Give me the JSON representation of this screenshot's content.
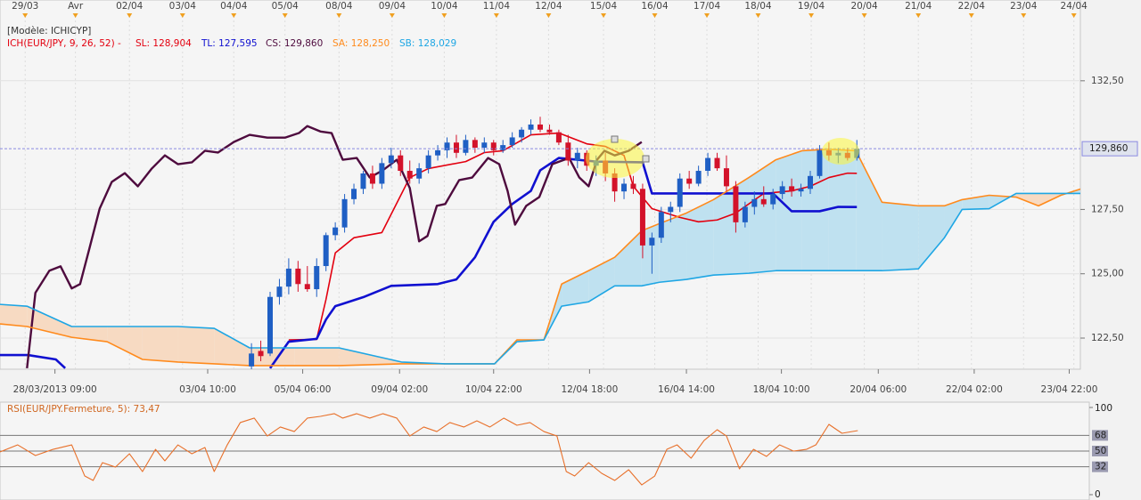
{
  "header": {
    "model": "[Modèle: ICHICYP]"
  },
  "chart_data": [
    {
      "type": "candlestick",
      "indicator_label": "ICH(EUR/JPY, 9, 26, 52) -",
      "xlim": [
        0,
        116
      ],
      "ylim": [
        121.29,
        135.64
      ],
      "grid": true,
      "yticks": [
        {
          "value": 122.5,
          "label": "122,50"
        },
        {
          "value": 125,
          "label": "125,00"
        },
        {
          "value": 127.5,
          "label": "127,50"
        },
        {
          "value": 132.5,
          "label": "132,50"
        }
      ],
      "last_price": {
        "value": 129.86,
        "label": "129,860"
      },
      "xticks_top": [
        {
          "value": 2.7,
          "label": "29/03"
        },
        {
          "value": 8.1,
          "label": "Avr"
        },
        {
          "value": 13.9,
          "label": "02/04"
        },
        {
          "value": 19.6,
          "label": "03/04"
        },
        {
          "value": 25.1,
          "label": "04/04"
        },
        {
          "value": 30.6,
          "label": "05/04"
        },
        {
          "value": 36.4,
          "label": "08/04"
        },
        {
          "value": 42.1,
          "label": "09/04"
        },
        {
          "value": 47.7,
          "label": "10/04"
        },
        {
          "value": 53.3,
          "label": "11/04"
        },
        {
          "value": 58.9,
          "label": "12/04"
        },
        {
          "value": 64.8,
          "label": "15/04"
        },
        {
          "value": 70.3,
          "label": "16/04"
        },
        {
          "value": 75.9,
          "label": "17/04"
        },
        {
          "value": 81.4,
          "label": "18/04"
        },
        {
          "value": 87.1,
          "label": "19/04"
        },
        {
          "value": 92.8,
          "label": "20/04"
        },
        {
          "value": 98.6,
          "label": "21/04"
        },
        {
          "value": 104.3,
          "label": "22/04"
        },
        {
          "value": 109.9,
          "label": "23/04"
        },
        {
          "value": 115.3,
          "label": "24/04"
        }
      ],
      "xticks": [
        {
          "value": 5.9,
          "label": "28/03/2013 09:00"
        },
        {
          "value": 22.3,
          "label": "03/04 10:00"
        },
        {
          "value": 32.5,
          "label": "05/04 06:00"
        },
        {
          "value": 42.9,
          "label": "09/04 02:00"
        },
        {
          "value": 53.0,
          "label": "10/04 22:00"
        },
        {
          "value": 63.3,
          "label": "12/04 18:00"
        },
        {
          "value": 73.7,
          "label": "16/04 14:00"
        },
        {
          "value": 83.9,
          "label": "18/04 10:00"
        },
        {
          "value": 94.3,
          "label": "20/04 06:00"
        },
        {
          "value": 104.6,
          "label": "22/04 02:00"
        },
        {
          "value": 114.8,
          "label": "23/04 22:00"
        }
      ],
      "candles": {
        "up_color": "#1f5fc4",
        "down_color": "#d3122a",
        "x": [
          27,
          28,
          29,
          30,
          31,
          32,
          33,
          34,
          35,
          36,
          37,
          38,
          39,
          40,
          41,
          42,
          43,
          44,
          45,
          46,
          47,
          48,
          49,
          50,
          51,
          52,
          53,
          54,
          55,
          56,
          57,
          58,
          59,
          60,
          61,
          62,
          63,
          64,
          65,
          66,
          67,
          68,
          69,
          70,
          71,
          72,
          73,
          74,
          75,
          76,
          77,
          78,
          79,
          80,
          81,
          82,
          83,
          84,
          85,
          86,
          87,
          88,
          89,
          90,
          91,
          92
        ],
        "open": [
          121.4,
          122.0,
          121.9,
          124.1,
          124.5,
          125.2,
          124.6,
          124.4,
          125.3,
          126.5,
          126.8,
          127.9,
          128.3,
          128.9,
          128.5,
          129.3,
          129.6,
          129.0,
          128.7,
          129.1,
          129.6,
          129.8,
          130.1,
          129.7,
          130.2,
          129.9,
          130.1,
          129.8,
          130.0,
          130.3,
          130.6,
          130.8,
          130.6,
          130.5,
          130.1,
          129.4,
          129.7,
          129.2,
          129.4,
          128.9,
          128.2,
          128.5,
          128.3,
          126.1,
          126.4,
          127.4,
          127.6,
          128.7,
          128.5,
          129.0,
          129.5,
          129.1,
          128.4,
          127.0,
          127.6,
          127.9,
          127.7,
          128.1,
          128.4,
          128.2,
          128.3,
          128.8,
          129.8,
          129.6,
          129.7,
          129.5
        ],
        "high": [
          122.3,
          122.4,
          124.3,
          124.8,
          125.6,
          125.5,
          125.3,
          125.6,
          126.6,
          127.0,
          128.1,
          128.5,
          129.0,
          129.2,
          129.5,
          129.9,
          129.8,
          129.4,
          129.3,
          129.8,
          130.0,
          130.3,
          130.4,
          130.4,
          130.3,
          130.3,
          130.2,
          130.2,
          130.5,
          130.7,
          131.0,
          131.1,
          130.8,
          130.6,
          130.4,
          129.9,
          129.8,
          129.6,
          129.7,
          129.1,
          128.7,
          128.8,
          128.5,
          126.6,
          127.6,
          127.8,
          128.9,
          129.0,
          129.2,
          129.7,
          129.7,
          129.6,
          128.6,
          127.8,
          128.2,
          128.4,
          128.3,
          128.6,
          128.7,
          128.5,
          129.0,
          130.0,
          130.1,
          129.9,
          129.9,
          130.2
        ],
        "low": [
          121.2,
          121.6,
          121.8,
          123.8,
          124.2,
          124.3,
          124.3,
          124.1,
          125.1,
          126.3,
          126.6,
          127.7,
          128.1,
          128.3,
          128.3,
          129.1,
          128.8,
          128.5,
          128.5,
          128.9,
          129.4,
          129.5,
          129.5,
          129.6,
          129.7,
          129.7,
          129.6,
          129.7,
          129.9,
          130.1,
          130.4,
          130.5,
          130.4,
          130.0,
          129.2,
          129.1,
          129.0,
          128.8,
          128.6,
          127.8,
          127.9,
          128.1,
          125.6,
          125.0,
          126.2,
          127.0,
          127.4,
          128.3,
          128.4,
          128.8,
          129.0,
          128.2,
          126.6,
          126.8,
          127.3,
          127.6,
          127.5,
          127.9,
          128.0,
          128.0,
          128.1,
          128.7,
          129.4,
          129.3,
          129.4,
          129.4
        ],
        "close": [
          121.9,
          121.8,
          124.1,
          124.5,
          125.2,
          124.6,
          124.4,
          125.3,
          126.5,
          126.8,
          127.9,
          128.3,
          128.9,
          128.5,
          129.3,
          129.6,
          129.0,
          128.7,
          129.1,
          129.6,
          129.8,
          130.1,
          129.7,
          130.2,
          129.9,
          130.1,
          129.8,
          130.0,
          130.3,
          130.6,
          130.8,
          130.6,
          130.5,
          130.1,
          129.4,
          129.7,
          129.2,
          129.4,
          128.9,
          128.2,
          128.5,
          128.3,
          126.1,
          126.4,
          127.4,
          127.6,
          128.7,
          128.5,
          129.0,
          129.5,
          129.1,
          128.4,
          127.0,
          127.6,
          127.9,
          127.7,
          128.1,
          128.4,
          128.2,
          128.3,
          128.8,
          129.8,
          129.6,
          129.7,
          129.5,
          129.86
        ]
      },
      "cloud_colors": {
        "up": "#bfe1f0",
        "down": "#f7dac2"
      },
      "series": [
        {
          "name": "SL",
          "legend": "SL: 128,904",
          "color": "#e3000f",
          "width": 1.6,
          "x": [
            31,
            34,
            35,
            36,
            38,
            41,
            44,
            46,
            50,
            52,
            54,
            57,
            60,
            63,
            65,
            67,
            68,
            70,
            73,
            75,
            77,
            79,
            82,
            85,
            87,
            89,
            91,
            92
          ],
          "values": [
            122.43,
            122.45,
            124.0,
            125.81,
            126.4,
            126.6,
            128.74,
            129.09,
            129.36,
            129.71,
            129.78,
            130.4,
            130.47,
            130.05,
            129.95,
            129.6,
            128.4,
            127.53,
            127.19,
            127.02,
            127.09,
            127.36,
            128.12,
            128.22,
            128.4,
            128.74,
            128.91,
            128.904
          ]
        },
        {
          "name": "TL",
          "legend": "TL: 127,595",
          "color": "#1010d0",
          "width": 2.6,
          "x": [
            0,
            3,
            6,
            7,
            18,
            29,
            31,
            34,
            35,
            36,
            39,
            42,
            47,
            49,
            51,
            53,
            55,
            57,
            58,
            60,
            64,
            69,
            70,
            78,
            83,
            85,
            88,
            90,
            92
          ],
          "values": [
            121.84,
            121.84,
            121.67,
            121.33,
            null,
            121.33,
            122.36,
            122.47,
            123.22,
            123.74,
            124.09,
            124.53,
            124.6,
            124.78,
            125.64,
            127.02,
            127.71,
            128.22,
            129.02,
            129.5,
            129.36,
            129.33,
            128.12,
            128.12,
            128.12,
            127.43,
            127.43,
            127.6,
            127.595
          ]
        },
        {
          "name": "CS",
          "legend": "CS: 129,860",
          "color": "#4e0b3e",
          "width": 2.4,
          "x": [
            2.9,
            3.8,
            5.3,
            6.5,
            7.7,
            8.6,
            9.6,
            10.7,
            12,
            13.4,
            14.8,
            16.3,
            17.7,
            19.1,
            20.6,
            22,
            23.4,
            25.1,
            26.8,
            28.7,
            30.6,
            32.1,
            33,
            34.4,
            35.6,
            36.8,
            38.3,
            39.7,
            41.1,
            42.6,
            44,
            45,
            45.9,
            46.9,
            47.8,
            49.3,
            50.7,
            52.4,
            53.6,
            54.5,
            55.3,
            56.5,
            57.9,
            59.3,
            61.1,
            62.2,
            63.2,
            64.1,
            64.9,
            66,
            67.5,
            68.9
          ],
          "values": [
            121.33,
            124.26,
            125.12,
            125.29,
            124.43,
            124.6,
            125.98,
            127.53,
            128.57,
            128.91,
            128.4,
            129.09,
            129.6,
            129.26,
            129.33,
            129.78,
            129.71,
            130.12,
            130.4,
            130.29,
            130.29,
            130.47,
            130.74,
            130.53,
            130.47,
            129.43,
            129.5,
            128.74,
            129.02,
            129.43,
            128.33,
            126.26,
            126.47,
            127.64,
            127.71,
            128.64,
            128.74,
            129.5,
            129.26,
            128.22,
            126.91,
            127.64,
            127.98,
            129.26,
            129.5,
            128.74,
            128.4,
            129.43,
            129.78,
            129.6,
            129.78,
            130.12
          ]
        },
        {
          "name": "SA",
          "legend": "SA: 128,250",
          "color": "#ff8a1c",
          "width": 1.6,
          "x": [
            0,
            2.9,
            7.7,
            11.5,
            15.3,
            19.1,
            23,
            26.8,
            31.6,
            36.4,
            43.1,
            47.8,
            53.1,
            55.5,
            58.4,
            60.3,
            63.2,
            66,
            68.9,
            70.8,
            73.7,
            76.6,
            80.4,
            83.3,
            86.1,
            89,
            91.9,
            94.7,
            98.6,
            101.4,
            103.3,
            106.2,
            109.1,
            111.5,
            113.9,
            116
          ],
          "values": [
            123.05,
            122.95,
            122.53,
            122.36,
            121.67,
            121.57,
            121.5,
            121.43,
            121.43,
            121.43,
            121.5,
            121.5,
            121.5,
            122.43,
            122.43,
            124.6,
            125.12,
            125.64,
            126.67,
            126.95,
            127.36,
            127.88,
            128.74,
            129.43,
            129.78,
            129.84,
            129.78,
            127.78,
            127.64,
            127.64,
            127.88,
            128.05,
            127.98,
            127.64,
            128.05,
            128.29
          ]
        },
        {
          "name": "SB",
          "legend": "SB: 128,029",
          "color": "#1ea6e4",
          "width": 1.6,
          "x": [
            0,
            2.9,
            7.7,
            11.5,
            15.3,
            19.1,
            23,
            26.8,
            31.6,
            36.4,
            43.1,
            47.8,
            53.1,
            55.5,
            58.4,
            60.3,
            63.2,
            66,
            68.9,
            70.8,
            73.7,
            76.6,
            80.4,
            83.3,
            86.1,
            89,
            91.9,
            94.7,
            98.6,
            101.4,
            103.3,
            106.2,
            109.1,
            111.5,
            113.9,
            116
          ],
          "values": [
            123.81,
            123.74,
            122.95,
            122.95,
            122.95,
            122.95,
            122.88,
            122.12,
            122.12,
            122.12,
            121.57,
            121.5,
            121.5,
            122.36,
            122.43,
            123.74,
            123.91,
            124.53,
            124.53,
            124.67,
            124.78,
            124.95,
            125.02,
            125.12,
            125.12,
            125.12,
            125.12,
            125.12,
            125.19,
            126.4,
            127.5,
            127.53,
            128.12,
            128.12,
            128.12,
            128.12
          ]
        }
      ]
    },
    {
      "type": "line",
      "title": "RSI(EUR/JPY.Fermeture, 5): 73,47",
      "color": "#e8702a",
      "xlim": [
        0,
        116
      ],
      "ylim": [
        0,
        100
      ],
      "yticks": [
        0,
        32,
        50,
        68,
        100
      ],
      "x": [
        0,
        1.9,
        3.8,
        5.7,
        7.7,
        9.1,
        10,
        11,
        12.4,
        13.9,
        15.3,
        16.7,
        17.7,
        19.1,
        20.6,
        22,
        23,
        24.4,
        25.8,
        27.3,
        28.7,
        30.1,
        31.6,
        33,
        34.4,
        35.9,
        36.8,
        38.3,
        39.7,
        41.1,
        42.6,
        44,
        45.5,
        46.9,
        48.3,
        49.8,
        51.2,
        52.6,
        54.1,
        55.5,
        56.9,
        58.4,
        59.8,
        60.8,
        61.7,
        63.2,
        64.6,
        66,
        67.5,
        68.9,
        70.3,
        71.6,
        72.7,
        74.2,
        75.6,
        77,
        78,
        79.4,
        80.9,
        82.3,
        83.7,
        85.2,
        86.6,
        87.6,
        89,
        90.4,
        92.1
      ],
      "values": [
        49.0,
        57.1,
        44.9,
        52.0,
        57.1,
        21.4,
        16.3,
        36.7,
        31.6,
        46.9,
        26.5,
        52.0,
        38.8,
        57.1,
        46.9,
        54.1,
        26.5,
        57.1,
        82.7,
        87.8,
        67.3,
        77.6,
        72.4,
        87.8,
        89.8,
        92.9,
        87.8,
        92.9,
        87.8,
        92.9,
        87.8,
        67.3,
        77.6,
        72.4,
        82.7,
        77.6,
        84.7,
        77.6,
        87.8,
        79.6,
        82.7,
        72.4,
        67.3,
        26.5,
        21.4,
        36.7,
        24.5,
        16.3,
        28.6,
        11.2,
        21.4,
        52.0,
        57.1,
        41.8,
        62.2,
        74.5,
        67.3,
        29.6,
        52.0,
        43.9,
        57.1,
        50.0,
        52.0,
        57.1,
        80.6,
        70.4,
        73.47
      ]
    }
  ]
}
